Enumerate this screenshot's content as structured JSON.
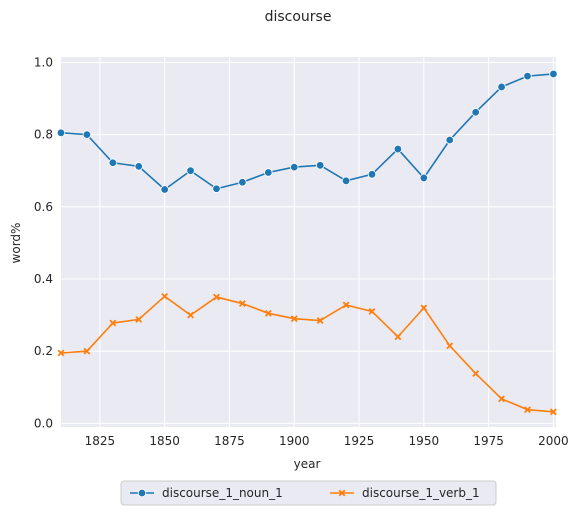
{
  "chart_data": {
    "type": "line",
    "title": "discourse",
    "xlabel": "year",
    "ylabel": "word%",
    "xlim": [
      1810,
      2001
    ],
    "ylim": [
      -0.01,
      1.015
    ],
    "xticks": [
      1825,
      1850,
      1875,
      1900,
      1925,
      1950,
      1975,
      2000
    ],
    "yticks": [
      0.0,
      0.2,
      0.4,
      0.6,
      0.8,
      1.0
    ],
    "grid": true,
    "legend": "bottom-center, outside",
    "x": [
      1810,
      1820,
      1830,
      1840,
      1850,
      1860,
      1870,
      1880,
      1890,
      1900,
      1910,
      1920,
      1930,
      1940,
      1950,
      1960,
      1970,
      1980,
      1990,
      2000
    ],
    "series": [
      {
        "name": "discourse_1_noun_1",
        "color": "#1f77b4",
        "marker": "circle",
        "values": [
          0.805,
          0.8,
          0.722,
          0.712,
          0.648,
          0.7,
          0.65,
          0.668,
          0.695,
          0.71,
          0.715,
          0.672,
          0.69,
          0.76,
          0.68,
          0.785,
          0.862,
          0.932,
          0.962,
          0.968
        ]
      },
      {
        "name": "discourse_1_verb_1",
        "color": "#ff7f0e",
        "marker": "x",
        "values": [
          0.195,
          0.2,
          0.278,
          0.288,
          0.352,
          0.3,
          0.35,
          0.332,
          0.305,
          0.29,
          0.285,
          0.328,
          0.31,
          0.24,
          0.32,
          0.215,
          0.138,
          0.068,
          0.038,
          0.032
        ]
      }
    ]
  }
}
